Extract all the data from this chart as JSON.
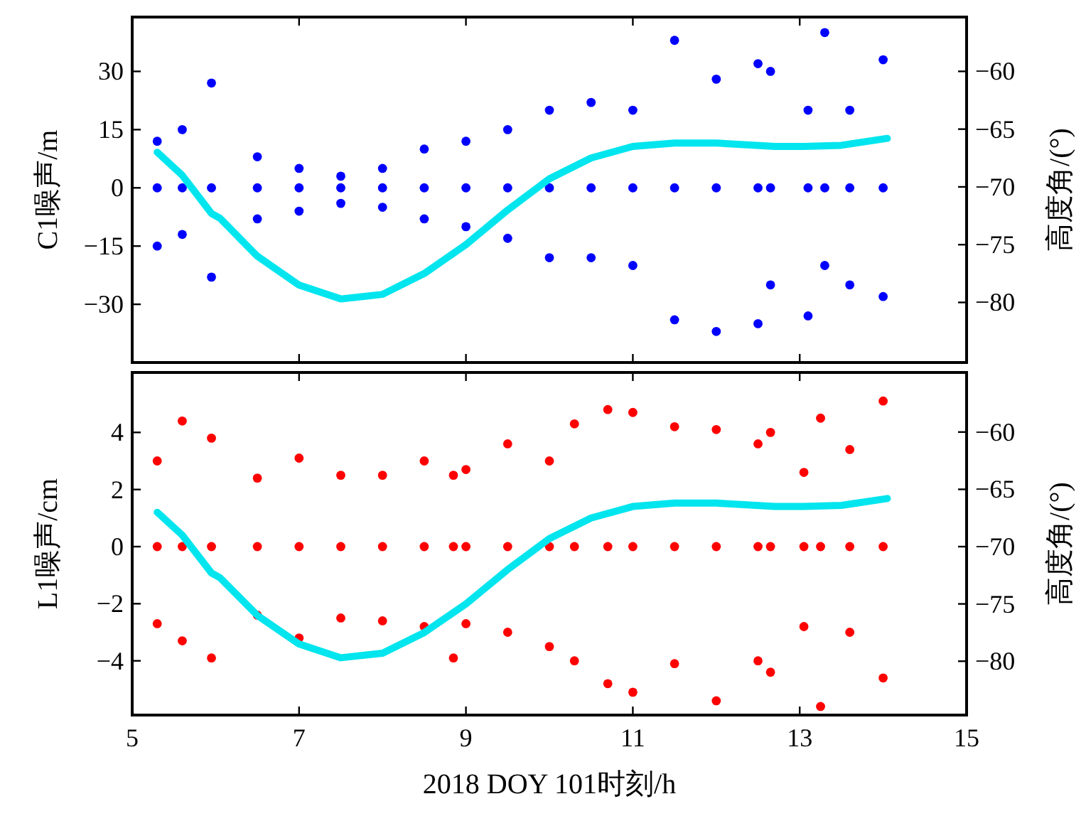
{
  "chart_data": [
    {
      "type": "scatter",
      "ylabel": "C1噪声/m",
      "y2label": "高度角/(°)",
      "xlim": [
        5,
        15
      ],
      "xticks": [
        5,
        7,
        9,
        11,
        13,
        15
      ],
      "ylim": [
        -45,
        44
      ],
      "yticks": [
        -30,
        -15,
        0,
        15,
        30
      ],
      "y2lim": [
        -85.2,
        -55.3
      ],
      "y2ticks": [
        -80,
        -75,
        -70,
        -65,
        -60
      ],
      "tick_labels": "y",
      "grid": false,
      "marker": "circle",
      "series": [
        {
          "color": "#0000ff",
          "x": [
            5.3,
            5.3,
            5.3,
            5.6,
            5.6,
            5.6,
            5.95,
            5.95,
            5.95,
            6.5,
            6.5,
            6.5,
            7,
            7,
            7,
            7.5,
            7.5,
            7.5,
            8,
            8,
            8,
            8.5,
            8.5,
            8.5,
            9,
            9,
            9,
            9.5,
            9.5,
            9.5,
            10,
            10,
            10,
            10.5,
            10.5,
            10.5,
            11,
            11,
            11,
            11.5,
            11.5,
            11.5,
            12,
            12,
            12,
            12.5,
            12.5,
            12.5,
            12.65,
            12.65,
            12.65,
            13.1,
            13.1,
            13.1,
            13.3,
            13.3,
            13.3,
            13.6,
            13.6,
            13.6,
            14,
            14,
            14
          ],
          "values": [
            12,
            0,
            -15,
            15,
            0,
            -12,
            27,
            0,
            -23,
            8,
            0,
            -8,
            5,
            0,
            -6,
            3,
            0,
            -4,
            5,
            0,
            -5,
            10,
            0,
            -8,
            12,
            0,
            -10,
            15,
            0,
            -13,
            20,
            0,
            -18,
            22,
            0,
            -18,
            20,
            0,
            -20,
            38,
            0,
            -34,
            28,
            0,
            -37,
            32,
            0,
            -35,
            30,
            0,
            -25,
            20,
            0,
            -33,
            40,
            0,
            -20,
            20,
            0,
            -25,
            33,
            0,
            -28
          ]
        },
        {
          "type": "line",
          "axis": "y2",
          "color": "#00e5ee",
          "marker": "none",
          "x": [
            5.3,
            5.6,
            5.95,
            6.05,
            6.5,
            7,
            7.5,
            8,
            8.5,
            9,
            9.5,
            10,
            10.5,
            11,
            11.5,
            12,
            12.7,
            13.05,
            13.5,
            14.05
          ],
          "values": [
            -67,
            -69,
            -72.3,
            -72.7,
            -76,
            -78.5,
            -79.7,
            -79.3,
            -77.5,
            -75,
            -72,
            -69.3,
            -67.5,
            -66.5,
            -66.2,
            -66.2,
            -66.5,
            -66.5,
            -66.4,
            -65.8
          ]
        }
      ]
    },
    {
      "type": "scatter",
      "xlabel": "2018 DOY 101时刻/h",
      "ylabel": "L1噪声/cm",
      "y2label": "高度角/(°)",
      "xlim": [
        5,
        15
      ],
      "xticks": [
        5,
        7,
        9,
        11,
        13,
        15
      ],
      "ylim": [
        -5.9,
        6.1
      ],
      "yticks": [
        -4,
        -2,
        0,
        2,
        4
      ],
      "y2lim": [
        -84.7,
        -54.8
      ],
      "y2ticks": [
        -80,
        -75,
        -70,
        -65,
        -60
      ],
      "grid": false,
      "marker": "circle",
      "series": [
        {
          "color": "#ff0000",
          "x": [
            5.3,
            5.3,
            5.3,
            5.6,
            5.6,
            5.6,
            5.95,
            5.95,
            5.95,
            6.5,
            6.5,
            6.5,
            7,
            7,
            7,
            7.5,
            7.5,
            7.5,
            8,
            8,
            8,
            8.5,
            8.5,
            8.5,
            8.85,
            8.85,
            8.85,
            9,
            9,
            9,
            9.5,
            9.5,
            9.5,
            10,
            10,
            10,
            10.3,
            10.3,
            10.3,
            10.7,
            10.7,
            10.7,
            11,
            11,
            11,
            11.5,
            11.5,
            11.5,
            12,
            12,
            12,
            12.5,
            12.5,
            12.5,
            12.65,
            12.65,
            12.65,
            13.05,
            13.05,
            13.05,
            13.25,
            13.25,
            13.25,
            13.6,
            13.6,
            13.6,
            14,
            14,
            14
          ],
          "values": [
            3,
            0,
            -2.7,
            4.4,
            0,
            -3.3,
            3.8,
            0,
            -3.9,
            2.4,
            0,
            -2.4,
            3.1,
            0,
            -3.2,
            2.5,
            0,
            -2.5,
            2.5,
            0,
            -2.6,
            3,
            0,
            -2.8,
            2.5,
            0,
            -3.9,
            2.7,
            0,
            -2.7,
            3.6,
            0,
            -3,
            3,
            0,
            -3.5,
            4.3,
            0,
            -4,
            4.8,
            0,
            -4.8,
            4.7,
            0,
            -5.1,
            4.2,
            0,
            -4.1,
            4.1,
            0,
            -5.4,
            3.6,
            0,
            -4,
            4,
            0,
            -4.4,
            2.6,
            0,
            -2.8,
            4.5,
            0,
            -5.6,
            3.4,
            0,
            -3,
            5.1,
            0,
            -4.6
          ]
        },
        {
          "type": "line",
          "axis": "y2",
          "color": "#00e5ee",
          "marker": "none",
          "x": [
            5.3,
            5.6,
            5.95,
            6.05,
            6.5,
            7,
            7.5,
            8,
            8.5,
            9,
            9.5,
            10,
            10.5,
            11,
            11.5,
            12,
            12.7,
            13.05,
            13.5,
            14.05
          ],
          "values": [
            -67,
            -69,
            -72.3,
            -72.7,
            -76,
            -78.5,
            -79.7,
            -79.3,
            -77.5,
            -75,
            -72,
            -69.3,
            -67.5,
            -66.5,
            -66.2,
            -66.2,
            -66.5,
            -66.5,
            -66.4,
            -65.8
          ]
        }
      ]
    }
  ]
}
